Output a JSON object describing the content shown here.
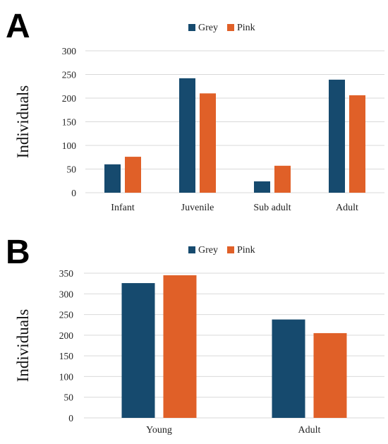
{
  "colors": {
    "grey": "#164a6e",
    "pink": "#e06028",
    "grid": "#d9d9d9"
  },
  "chart_data": [
    {
      "panel": "A",
      "type": "bar",
      "ylabel": "Individuals",
      "xlabel": "",
      "ylim": [
        0,
        300
      ],
      "yticks": [
        0,
        50,
        100,
        150,
        200,
        250,
        300
      ],
      "categories": [
        "Infant",
        "Juvenile",
        "Sub adult",
        "Adult"
      ],
      "series": [
        {
          "name": "Grey",
          "values": [
            60,
            242,
            24,
            239
          ]
        },
        {
          "name": "Pink",
          "values": [
            76,
            210,
            57,
            206
          ]
        }
      ],
      "grid": true,
      "legend": "top-center"
    },
    {
      "panel": "B",
      "type": "bar",
      "ylabel": "Individuals",
      "xlabel": "",
      "ylim": [
        0,
        350
      ],
      "yticks": [
        0,
        50,
        100,
        150,
        200,
        250,
        300,
        350
      ],
      "categories": [
        "Young",
        "Adult"
      ],
      "series": [
        {
          "name": "Grey",
          "values": [
            326,
            238
          ]
        },
        {
          "name": "Pink",
          "values": [
            345,
            205
          ]
        }
      ],
      "grid": true,
      "legend": "top-center"
    }
  ]
}
